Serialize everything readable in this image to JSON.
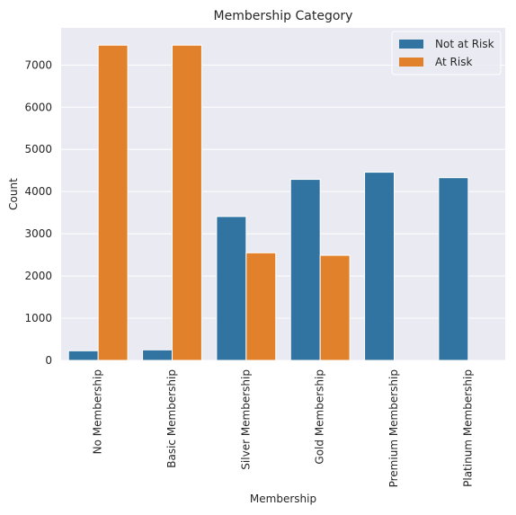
{
  "chart_data": {
    "type": "bar",
    "title": "Membership Category",
    "xlabel": "Membership",
    "ylabel": "Count",
    "categories": [
      "No Membership",
      "Basic Membership",
      "Silver Membership",
      "Gold Membership",
      "Premium Membership",
      "Platinum Membership"
    ],
    "series": [
      {
        "name": "Not at Risk",
        "color": "#3274a1",
        "values": [
          228,
          250,
          3410,
          4290,
          4460,
          4330
        ]
      },
      {
        "name": "At Risk",
        "color": "#e1812c",
        "values": [
          7470,
          7470,
          2550,
          2490,
          0,
          0
        ]
      }
    ],
    "ylim": [
      0,
      7880
    ],
    "yticks": [
      0,
      1000,
      2000,
      3000,
      4000,
      5000,
      6000,
      7000
    ],
    "grid": true,
    "legend_position": "top-right",
    "background": "#eaeaf2"
  }
}
